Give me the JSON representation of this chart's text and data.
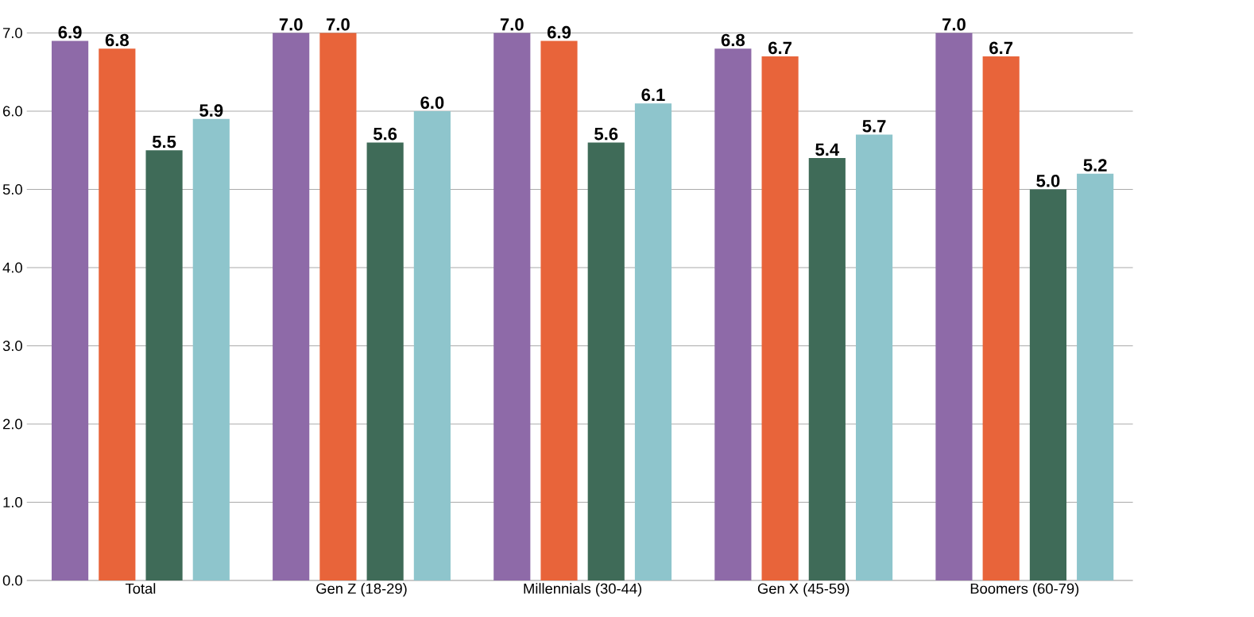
{
  "chart_data": {
    "type": "bar",
    "categories": [
      "Total",
      "Gen Z (18-29)",
      "Millennials  (30-44)",
      "Gen X (45-59)",
      "Boomers (60-79)"
    ],
    "series": [
      {
        "color": "#8e6aa8",
        "values": [
          6.9,
          7.0,
          7.0,
          6.8,
          7.0
        ],
        "value_labels": [
          "6.9",
          "7.0",
          "7.0",
          "6.8",
          "7.0"
        ]
      },
      {
        "color": "#e8643a",
        "values": [
          6.8,
          7.0,
          6.9,
          6.7,
          6.7
        ],
        "value_labels": [
          "6.8",
          "7.0",
          "6.9",
          "6.7",
          "6.7"
        ]
      },
      {
        "color": "#3f6b58",
        "values": [
          5.5,
          5.6,
          5.6,
          5.4,
          5.0
        ],
        "value_labels": [
          "5.5",
          "5.6",
          "5.6",
          "5.4",
          "5.0"
        ]
      },
      {
        "color": "#8ec5cc",
        "values": [
          5.9,
          6.0,
          6.1,
          5.7,
          5.2
        ],
        "value_labels": [
          "5.9",
          "6.0",
          "6.1",
          "5.7",
          "5.2"
        ]
      }
    ],
    "ylim": [
      0,
      7
    ],
    "yticks": [
      {
        "value": 0,
        "label": "0.0"
      },
      {
        "value": 1,
        "label": "1.0"
      },
      {
        "value": 2,
        "label": "2.0"
      },
      {
        "value": 3,
        "label": "3.0"
      },
      {
        "value": 4,
        "label": "4.0"
      },
      {
        "value": 5,
        "label": "5.0"
      },
      {
        "value": 6,
        "label": "6.0"
      },
      {
        "value": 7,
        "label": "7.0"
      }
    ],
    "grid": "y"
  }
}
